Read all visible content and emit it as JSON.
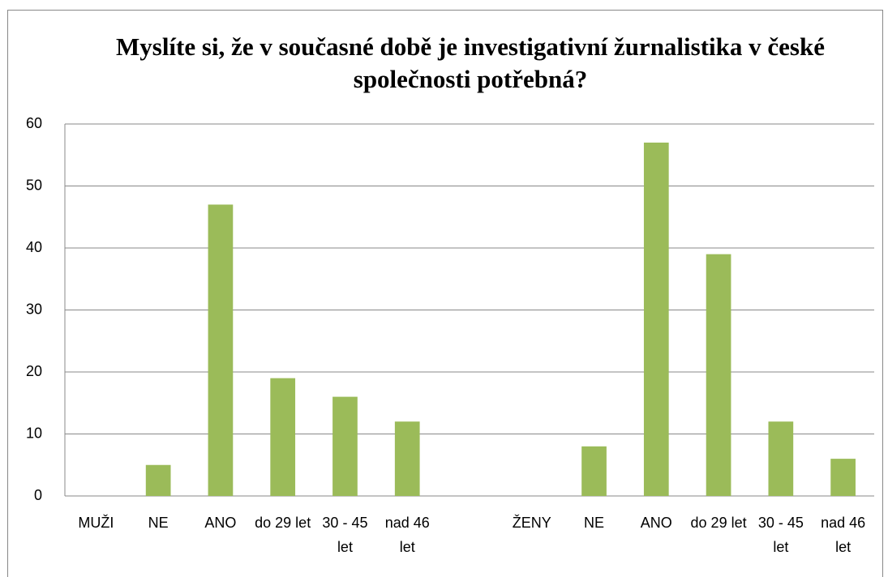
{
  "chart_data": {
    "type": "bar",
    "title": "Myslíte si, že v současné době je investigativní žurnalistika v české společnosti potřebná?",
    "categories": [
      "MUŽI",
      "NE",
      "ANO",
      "do 29 let",
      "30 - 45 let",
      "nad 46 let",
      null,
      "ŽENY",
      "NE",
      "ANO",
      "do 29 let",
      "30 - 45 let",
      "nad 46 let"
    ],
    "values": [
      null,
      5,
      47,
      19,
      16,
      12,
      null,
      null,
      8,
      57,
      39,
      12,
      6
    ],
    "color": "#9bbb59",
    "ylim": [
      0,
      60
    ],
    "yticks": [
      0,
      10,
      20,
      30,
      40,
      50,
      60
    ],
    "grid": true
  }
}
